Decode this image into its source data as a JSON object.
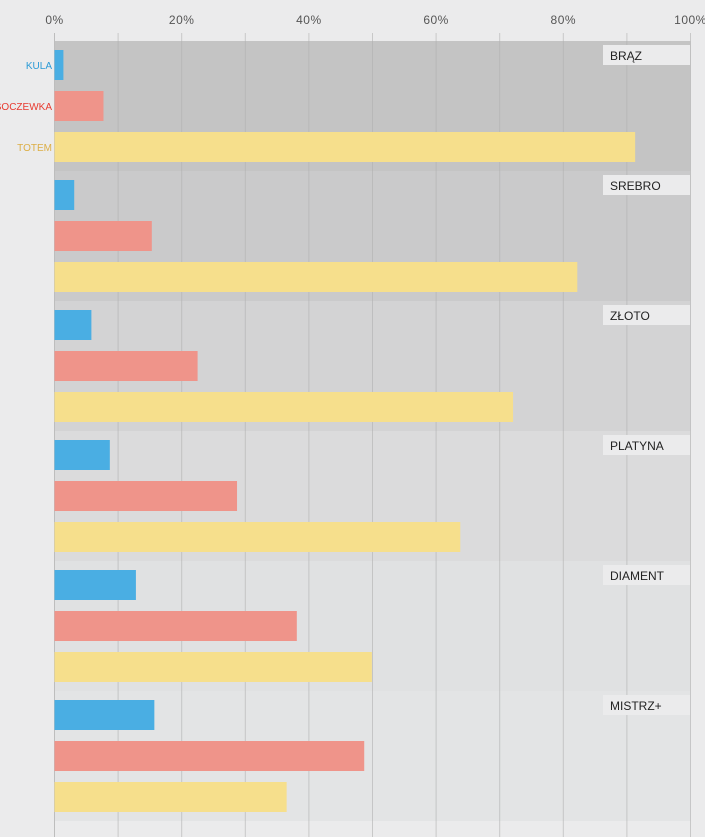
{
  "chart_data": {
    "type": "bar",
    "orientation": "horizontal",
    "xlim": [
      0,
      100
    ],
    "x_ticks": [
      "0%",
      "20%",
      "40%",
      "60%",
      "80%",
      "100%"
    ],
    "grid": true,
    "categories": [
      "BRĄZ",
      "SREBRO",
      "ZŁOTO",
      "PLATYNA",
      "DIAMENT",
      "MISTRZ+"
    ],
    "series": [
      {
        "name": "KULA",
        "color": "#4aaee3",
        "label_color": "#2b9ad6",
        "values": [
          1.4,
          3.1,
          5.8,
          8.7,
          12.8,
          15.7
        ]
      },
      {
        "name": "SOCZEWKA",
        "color": "#ef948a",
        "label_color": "#e83a30",
        "values": [
          7.7,
          15.3,
          22.5,
          28.7,
          38.1,
          48.7
        ]
      },
      {
        "name": "TOTEM",
        "color": "#f6df8c",
        "label_color": "#dcae45",
        "values": [
          91.3,
          82.2,
          72.1,
          63.8,
          49.9,
          36.5
        ]
      }
    ],
    "band_colors": [
      "#c4c4c4",
      "#cacacb",
      "#d3d3d4",
      "#dbdbdc",
      "#e0e1e2",
      "#e3e4e5"
    ]
  }
}
